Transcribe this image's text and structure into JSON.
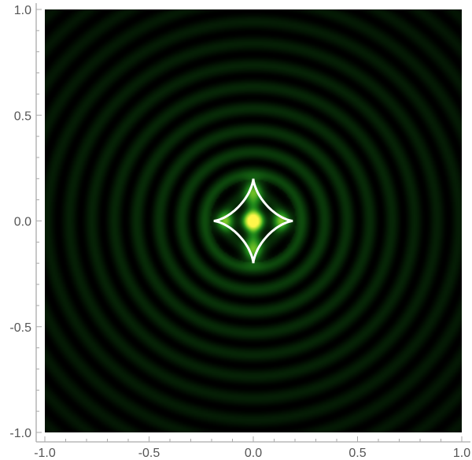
{
  "chart_data": {
    "type": "heatmap",
    "title": "",
    "xlabel": "",
    "ylabel": "",
    "xlim": [
      -1.0,
      1.0
    ],
    "ylim": [
      -1.0,
      1.0
    ],
    "grid": false,
    "x_ticks": [
      "-1.0",
      "-0.5",
      "0.0",
      "0.5",
      "1.0"
    ],
    "y_ticks": [
      "-1.0",
      "-0.5",
      "0.0",
      "0.5",
      "1.0"
    ],
    "x_tick_values": [
      -1.0,
      -0.5,
      0.0,
      0.5,
      1.0
    ],
    "y_tick_values": [
      -1.0,
      -0.5,
      0.0,
      0.5,
      1.0
    ],
    "minor_tick_step": 0.1,
    "colormap": [
      "#000000",
      "#0a3a0a",
      "#1f8a1a",
      "#8fd42a",
      "#fff64a"
    ],
    "pattern": "concentric interference rings with bright centre",
    "overlay": {
      "shape": "astroid",
      "color": "#ffffff",
      "cusp_x": 0.19,
      "cusp_y": 0.2
    }
  }
}
